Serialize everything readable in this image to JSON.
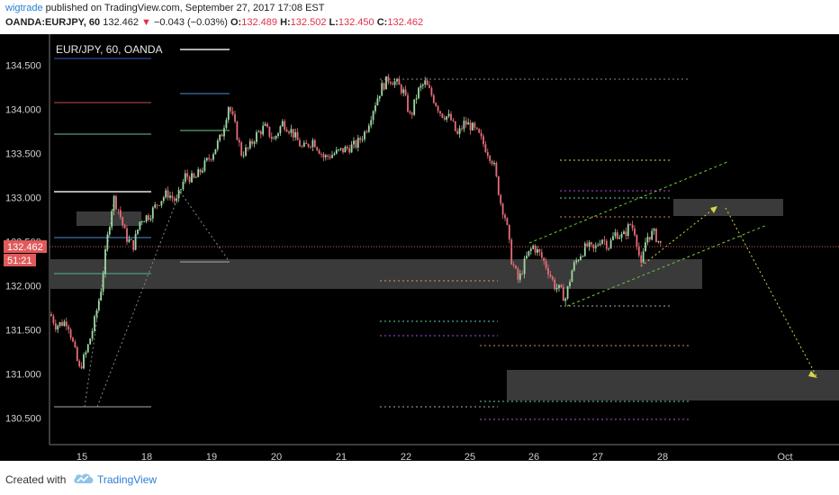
{
  "header": {
    "author": "wigtrade",
    "published_text": " published on TradingView.com, September 27, 2017 17:08 EST",
    "symbol": "OANDA:EURJPY, 60",
    "last": "132.462",
    "change_arrow": "▼",
    "change": "−0.043 (−0.03%)",
    "o_label": "O:",
    "o_value": "132.489",
    "h_label": "H:",
    "h_value": "132.502",
    "l_label": "L:",
    "l_value": "132.450",
    "c_label": "C:",
    "c_value": "132.462"
  },
  "legend": {
    "text": "EUR/JPY, 60, OANDA"
  },
  "price_tag": {
    "value": "132.462",
    "countdown": "51:21"
  },
  "colors": {
    "up": "#9fd9a4",
    "down": "#e76d7a",
    "accent": "#2a7fd4",
    "zone": "#3a3a3a",
    "price_line": "#e05a5a"
  },
  "footer": {
    "created_with": "Created with",
    "brand": "TradingView"
  },
  "chart_data": {
    "type": "candlestick",
    "title": "EUR/JPY, 60, OANDA",
    "x_ticks": [
      "15",
      "18",
      "19",
      "20",
      "21",
      "22",
      "25",
      "26",
      "27",
      "28",
      "Oct"
    ],
    "y_ticks": [
      "134.500",
      "134.000",
      "133.500",
      "133.000",
      "132.500",
      "132.000",
      "131.500",
      "131.000",
      "130.500"
    ],
    "ylim": [
      130.2,
      134.85
    ],
    "last_price": 132.462,
    "grid": false,
    "series": [
      {
        "name": "EURJPY",
        "path": [
          [
            "15",
            131.7
          ],
          [
            "15",
            131.4
          ],
          [
            "15",
            131.0
          ],
          [
            "15",
            131.2
          ],
          [
            "15",
            131.65
          ],
          [
            "18",
            133.0
          ],
          [
            "18",
            132.4
          ],
          [
            "18",
            132.8
          ],
          [
            "18",
            132.85
          ],
          [
            "18",
            133.1
          ],
          [
            "19",
            133.3
          ],
          [
            "19",
            133.5
          ],
          [
            "19",
            134.05
          ],
          [
            "19",
            133.6
          ],
          [
            "20",
            133.8
          ],
          [
            "20",
            133.65
          ],
          [
            "20",
            133.55
          ],
          [
            "21",
            133.6
          ],
          [
            "21",
            133.8
          ],
          [
            "21",
            134.1
          ],
          [
            "22",
            134.2
          ],
          [
            "22",
            133.9
          ],
          [
            "22",
            134.3
          ],
          [
            "22",
            134.1
          ],
          [
            "25",
            133.7
          ],
          [
            "25",
            133.6
          ],
          [
            "25",
            133.1
          ],
          [
            "25",
            132.6
          ],
          [
            "25",
            132.25
          ],
          [
            "26",
            132.45
          ],
          [
            "26",
            132.1
          ],
          [
            "26",
            131.8
          ],
          [
            "26",
            132.3
          ],
          [
            "27",
            132.45
          ],
          [
            "27",
            132.6
          ],
          [
            "27",
            132.2
          ],
          [
            "27",
            132.55
          ],
          [
            "28",
            132.46
          ]
        ]
      }
    ],
    "zones": [
      {
        "from": 132.28,
        "to": 131.97
      },
      {
        "from": 133.0,
        "to": 132.82
      },
      {
        "from": 132.93,
        "to": 132.77
      },
      {
        "from": 131.03,
        "to": 130.68
      }
    ]
  }
}
